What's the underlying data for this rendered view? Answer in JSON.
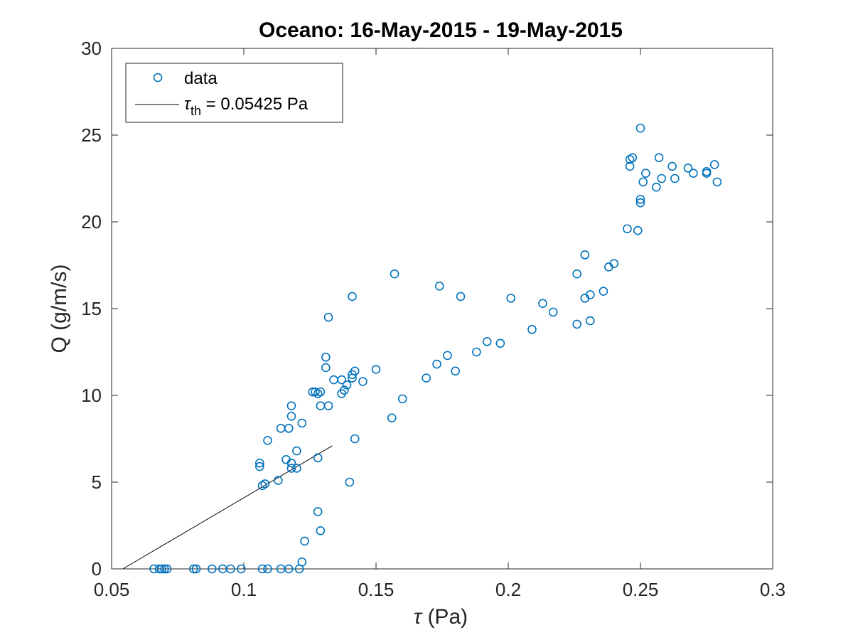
{
  "chart_data": {
    "type": "scatter",
    "title": "Oceano: 16-May-2015 - 19-May-2015",
    "xlabel_symbol": "τ",
    "xlabel_unit": " (Pa)",
    "ylabel": "Q (g/m/s)",
    "xlim": [
      0.05,
      0.3
    ],
    "ylim": [
      0,
      30
    ],
    "xticks": [
      0.05,
      0.1,
      0.15,
      0.2,
      0.25,
      0.3
    ],
    "xtick_labels": [
      "0.05",
      "0.1",
      "0.15",
      "0.2",
      "0.25",
      "0.3"
    ],
    "yticks": [
      0,
      5,
      10,
      15,
      20,
      25,
      30
    ],
    "ytick_labels": [
      "0",
      "5",
      "10",
      "15",
      "20",
      "25",
      "30"
    ],
    "grid": false,
    "legend_position": "top-left",
    "marker_color": "#0072BD",
    "line_color": "#000000",
    "series": [
      {
        "name": "data",
        "type": "scatter",
        "x": [
          0.066,
          0.068,
          0.069,
          0.07,
          0.071,
          0.081,
          0.082,
          0.088,
          0.092,
          0.095,
          0.099,
          0.107,
          0.109,
          0.114,
          0.117,
          0.121,
          0.122,
          0.106,
          0.106,
          0.107,
          0.108,
          0.109,
          0.113,
          0.114,
          0.116,
          0.117,
          0.118,
          0.118,
          0.118,
          0.118,
          0.12,
          0.12,
          0.122,
          0.123,
          0.126,
          0.127,
          0.128,
          0.128,
          0.128,
          0.129,
          0.129,
          0.129,
          0.131,
          0.131,
          0.132,
          0.132,
          0.134,
          0.137,
          0.137,
          0.138,
          0.139,
          0.14,
          0.141,
          0.141,
          0.141,
          0.142,
          0.142,
          0.145,
          0.15,
          0.156,
          0.157,
          0.16,
          0.169,
          0.173,
          0.174,
          0.177,
          0.18,
          0.182,
          0.188,
          0.192,
          0.197,
          0.201,
          0.209,
          0.213,
          0.217,
          0.226,
          0.226,
          0.229,
          0.229,
          0.231,
          0.231,
          0.236,
          0.238,
          0.24,
          0.245,
          0.246,
          0.246,
          0.247,
          0.249,
          0.25,
          0.25,
          0.25,
          0.251,
          0.252,
          0.256,
          0.257,
          0.258,
          0.262,
          0.263,
          0.268,
          0.27,
          0.275,
          0.275,
          0.278,
          0.279
        ],
        "y": [
          0,
          0,
          0,
          0,
          0,
          0,
          0,
          0,
          0,
          0,
          0,
          0,
          0,
          0,
          0,
          0,
          0.4,
          5.9,
          6.1,
          4.8,
          4.9,
          7.4,
          5.1,
          8.1,
          6.3,
          8.1,
          8.8,
          9.4,
          6.1,
          5.8,
          5.8,
          6.8,
          8.4,
          1.6,
          10.2,
          10.2,
          10.1,
          3.3,
          6.4,
          10.2,
          2.2,
          9.4,
          11.6,
          12.2,
          9.4,
          14.5,
          10.9,
          10.1,
          10.9,
          10.3,
          10.6,
          5.0,
          11.0,
          15.7,
          11.2,
          11.4,
          7.5,
          10.8,
          11.5,
          8.7,
          17.0,
          9.8,
          11.0,
          11.8,
          16.3,
          12.3,
          11.4,
          15.7,
          12.5,
          13.1,
          13.0,
          15.6,
          13.8,
          15.3,
          14.8,
          17.0,
          14.1,
          15.6,
          18.1,
          15.8,
          14.3,
          16.0,
          17.4,
          17.6,
          19.6,
          23.6,
          23.2,
          23.7,
          19.5,
          25.4,
          21.1,
          21.3,
          22.3,
          22.8,
          22.0,
          23.7,
          22.5,
          23.2,
          22.5,
          23.1,
          22.8,
          22.8,
          22.9,
          23.3,
          22.3
        ]
      },
      {
        "name": "τth = 0.05425 Pa",
        "legend_symbol": "τ",
        "legend_sub": "th",
        "legend_rest": " = 0.05425 Pa",
        "type": "line",
        "x": [
          0.05425,
          0.1335
        ],
        "y": [
          0,
          7.1
        ]
      }
    ]
  }
}
